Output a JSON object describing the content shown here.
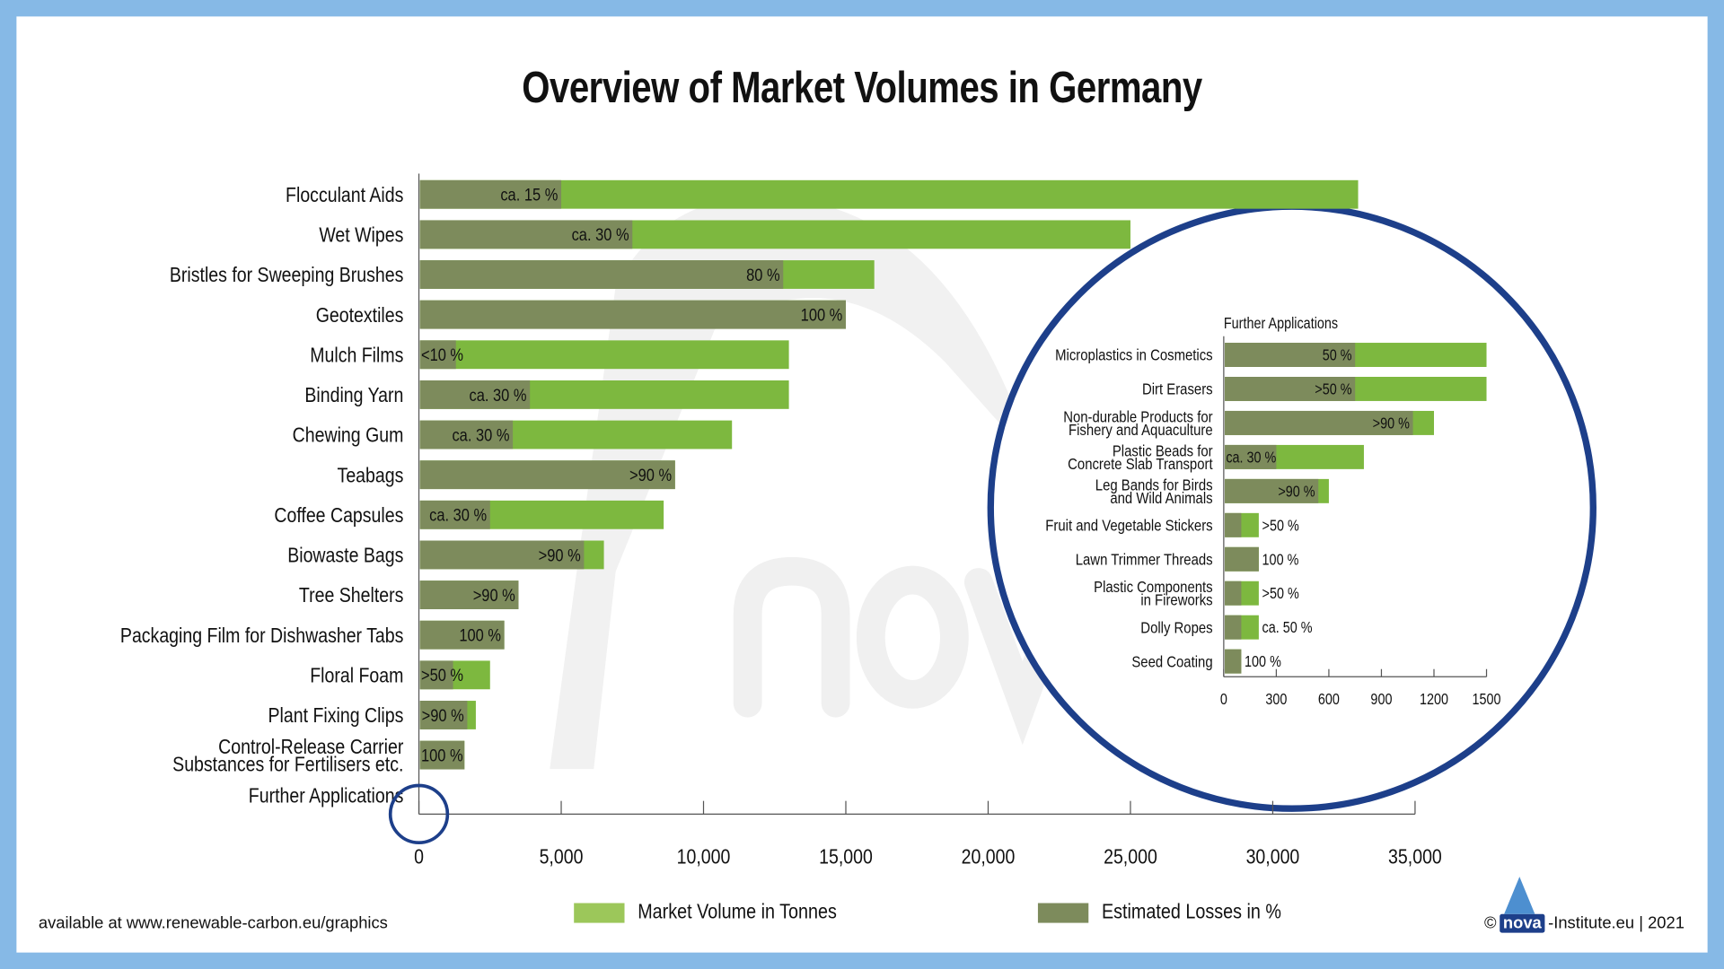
{
  "colors": {
    "volume": "#7db83f",
    "loss": "#7d8b5c",
    "legend_volume": "#9cc75a",
    "circle": "#1d3f8a",
    "frame": "#86b9e6"
  },
  "footer": {
    "source": "available at www.renewable-carbon.eu/graphics",
    "copyright_symbol": "©",
    "logo_text": "nova",
    "copyright_rest": "-Institute.eu | 2021"
  },
  "chart_data": [
    {
      "type": "bar",
      "orientation": "horizontal",
      "stacked_overlay": true,
      "title": "Overview of Market Volumes in Germany",
      "xlim": [
        0,
        35000
      ],
      "xticks": [
        0,
        5000,
        10000,
        15000,
        20000,
        25000,
        30000,
        35000
      ],
      "xtick_labels": [
        "0",
        "5,000",
        "10,000",
        "15,000",
        "20,000",
        "25,000",
        "30,000",
        "35,000"
      ],
      "legend": [
        "Market Volume in Tonnes",
        "Estimated Losses in %"
      ],
      "legend_position": "bottom",
      "categories": [
        "Flocculant Aids",
        "Wet Wipes",
        "Bristles for Sweeping Brushes",
        "Geotextiles",
        "Mulch Films",
        "Binding Yarn",
        "Chewing Gum",
        "Teabags",
        "Coffee Capsules",
        "Biowaste Bags",
        "Tree Shelters",
        "Packaging Film for Dishwasher Tabs",
        "Floral Foam",
        "Plant Fixing Clips",
        "Control-Release Carrier\nSubstances for Fertilisers etc.",
        "Further Applications"
      ],
      "volume_tonnes": [
        33000,
        25000,
        16000,
        15000,
        13000,
        13000,
        11000,
        9000,
        8600,
        6500,
        3500,
        3000,
        2500,
        2000,
        1600,
        0
      ],
      "losses_tonnes": [
        5000,
        7500,
        12800,
        15000,
        1300,
        3900,
        3300,
        9000,
        2500,
        5800,
        3500,
        3000,
        1200,
        1700,
        1600,
        0
      ],
      "loss_labels": [
        "ca. 15 %",
        "ca. 30 %",
        "80 %",
        "100 %",
        "<10 %",
        "ca. 30 %",
        "ca. 30 %",
        ">90 %",
        "ca. 30 %",
        ">90 %",
        ">90 %",
        "100 %",
        ">50 %",
        ">90 %",
        "100 %",
        ""
      ]
    },
    {
      "type": "bar",
      "orientation": "horizontal",
      "stacked_overlay": true,
      "title": "Further Applications",
      "xlim": [
        0,
        1500
      ],
      "xticks": [
        0,
        300,
        600,
        900,
        1200,
        1500
      ],
      "xtick_labels": [
        "0",
        "300",
        "600",
        "900",
        "1200",
        "1500"
      ],
      "categories": [
        "Microplastics in Cosmetics",
        "Dirt Erasers",
        "Non-durable Products for\nFishery and Aquaculture",
        "Plastic Beads for\nConcrete Slab Transport",
        "Leg Bands for Birds\nand Wild Animals",
        "Fruit and Vegetable Stickers",
        "Lawn Trimmer Threads",
        "Plastic Components\nin Fireworks",
        "Dolly Ropes",
        "Seed Coating"
      ],
      "volume_tonnes": [
        1500,
        1500,
        1200,
        800,
        600,
        200,
        200,
        200,
        200,
        100
      ],
      "losses_tonnes": [
        750,
        750,
        1080,
        300,
        540,
        100,
        200,
        100,
        100,
        100
      ],
      "loss_labels": [
        "50 %",
        ">50 %",
        ">90 %",
        "ca. 30 %",
        ">90 %",
        ">50 %",
        "100 %",
        ">50 %",
        "ca. 50 %",
        "100 %"
      ]
    }
  ]
}
